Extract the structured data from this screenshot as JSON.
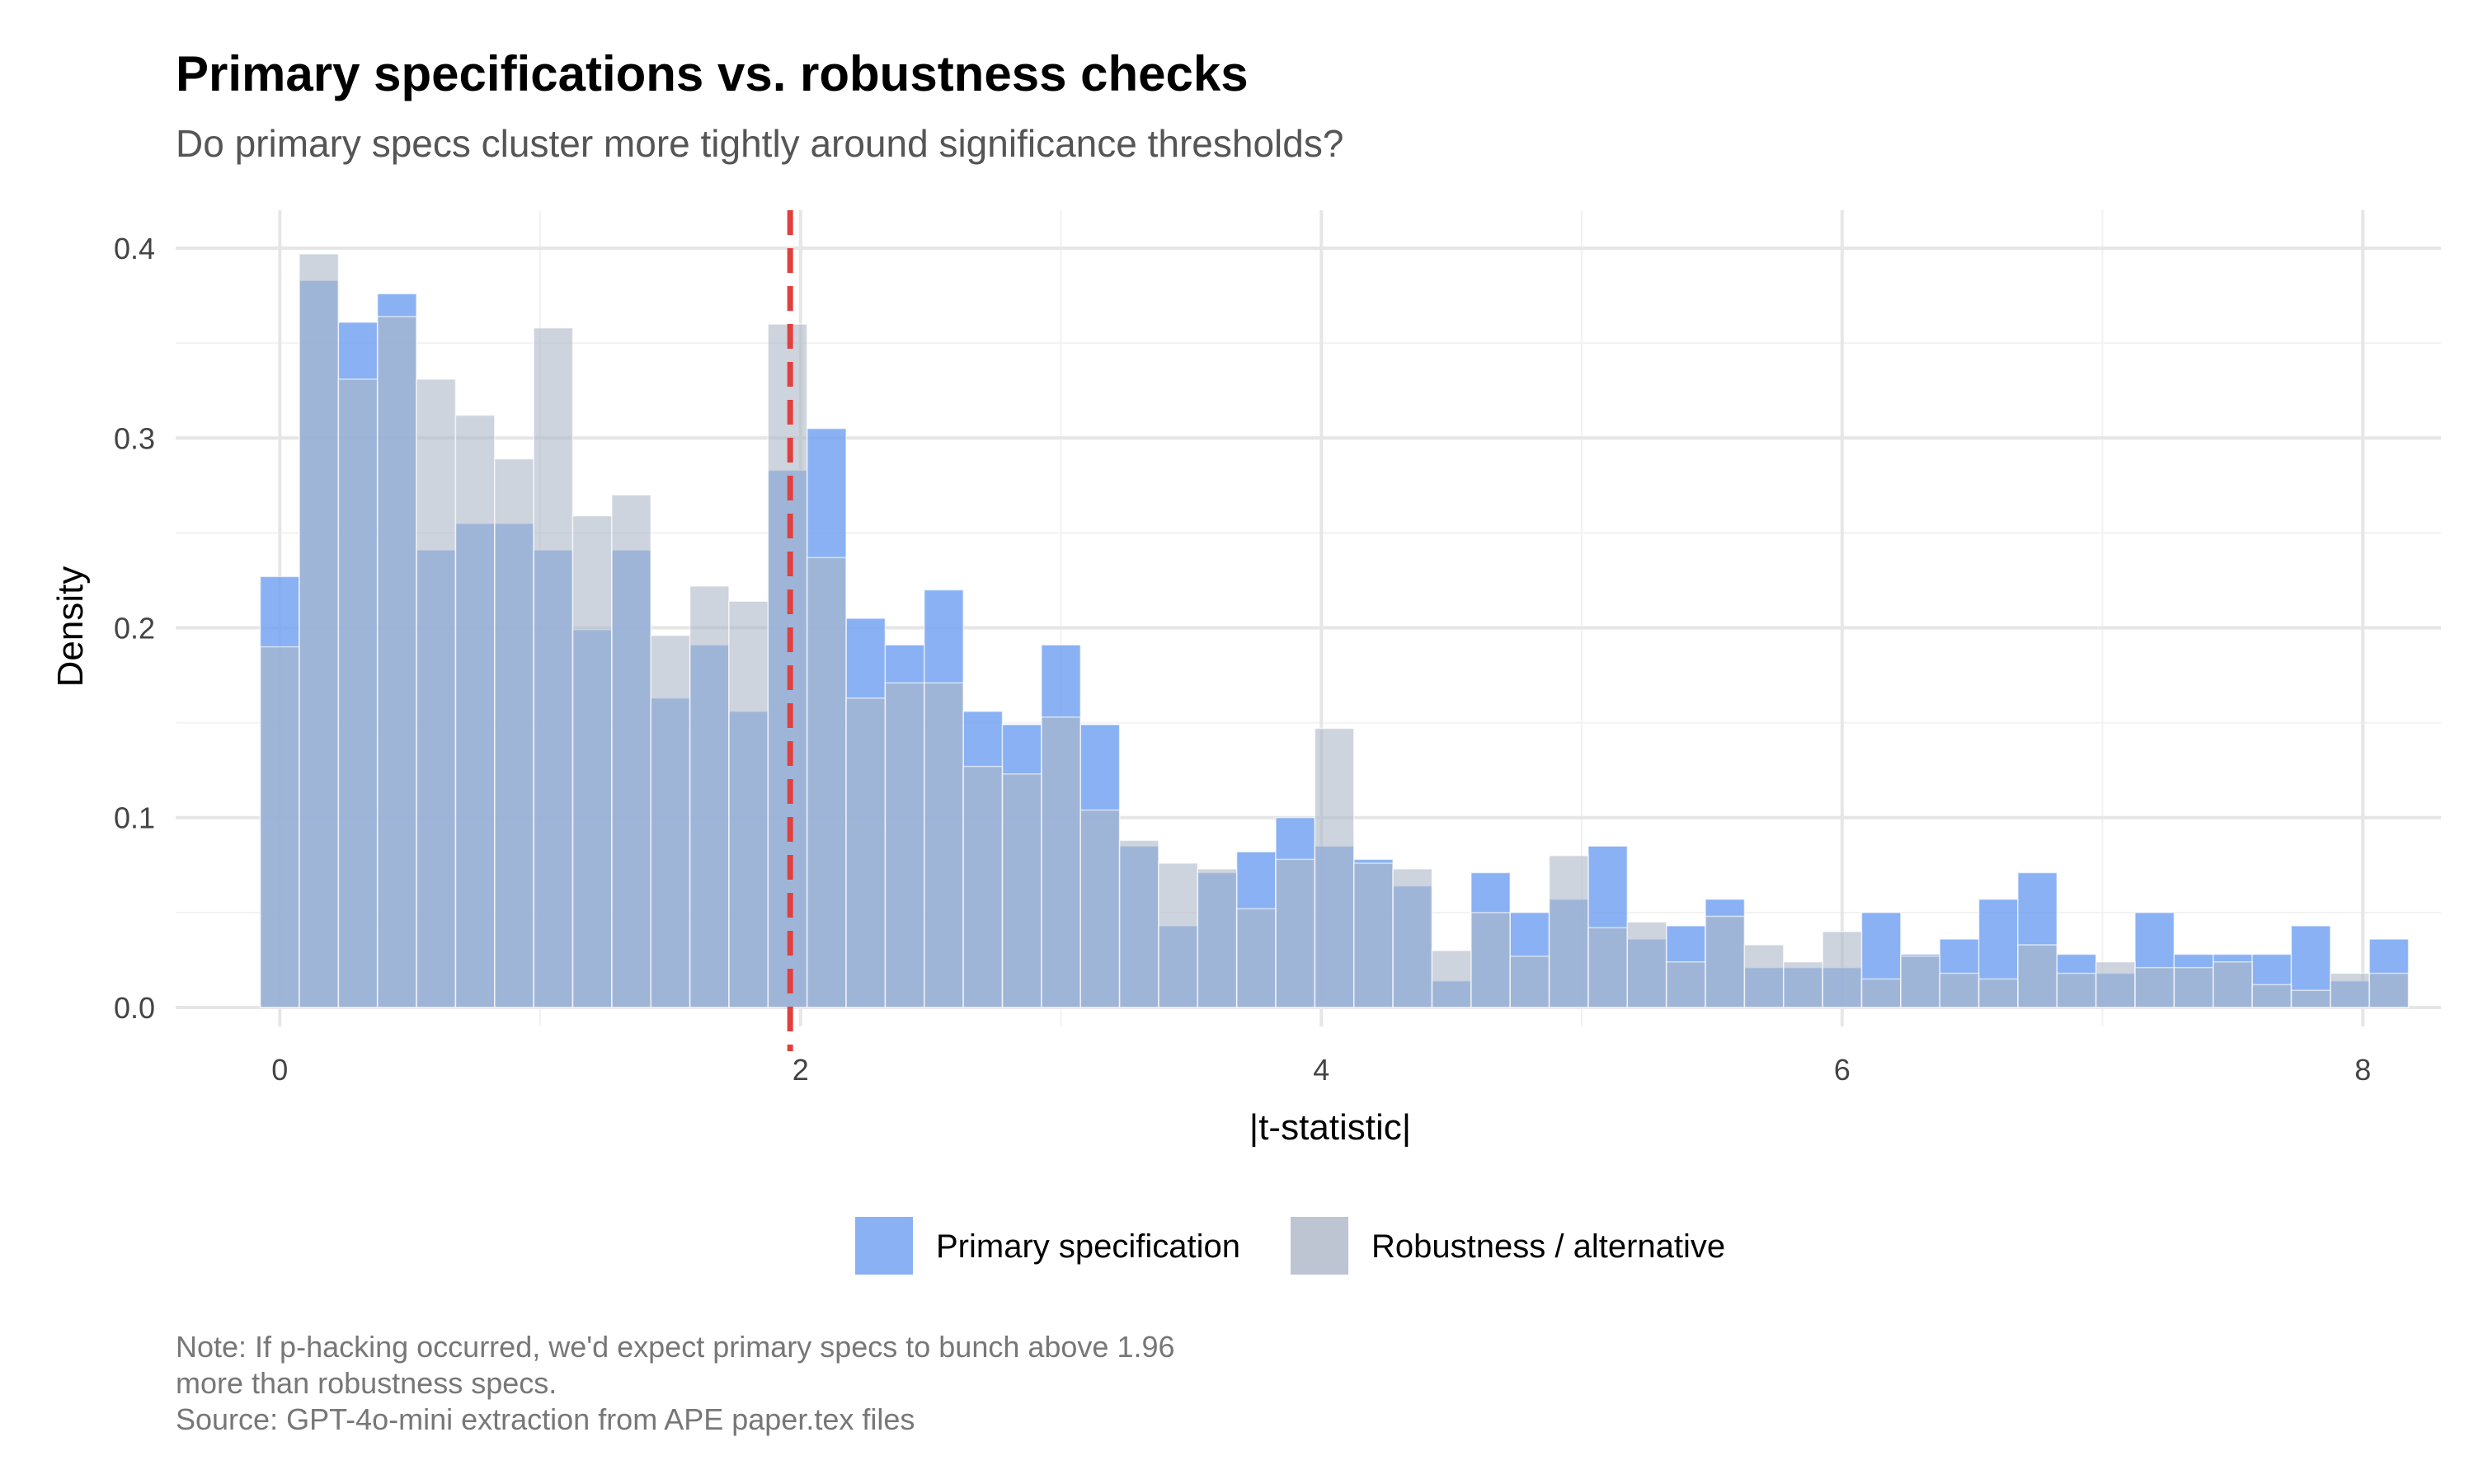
{
  "chart_data": {
    "type": "bar",
    "subtype": "overlaid-histogram",
    "title": "Primary specifications vs. robustness checks",
    "subtitle": "Do primary specs cluster more tightly around significance thresholds?",
    "xlabel": "|t-statistic|",
    "ylabel": "Density",
    "xlim": [
      -0.4,
      8.3
    ],
    "ylim": [
      -0.01,
      0.42
    ],
    "xticks": [
      0,
      2,
      4,
      6,
      8
    ],
    "xtick_labels": [
      "0",
      "2",
      "4",
      "6",
      "8"
    ],
    "yticks": [
      0.0,
      0.1,
      0.2,
      0.3,
      0.4
    ],
    "ytick_labels": [
      "0.0",
      "0.1",
      "0.2",
      "0.3",
      "0.4"
    ],
    "grid": true,
    "legend_position": "bottom",
    "bin_start": -0.075,
    "bin_width": 0.15,
    "reference_line": {
      "x": 1.96,
      "color": "#E04040",
      "style": "dashed"
    },
    "series": [
      {
        "name": "Primary specification",
        "color": "#6FA0F0",
        "values": [
          0.227,
          0.383,
          0.361,
          0.376,
          0.241,
          0.255,
          0.255,
          0.241,
          0.199,
          0.241,
          0.163,
          0.191,
          0.156,
          0.283,
          0.305,
          0.205,
          0.191,
          0.22,
          0.156,
          0.149,
          0.191,
          0.149,
          0.085,
          0.043,
          0.071,
          0.082,
          0.1,
          0.085,
          0.078,
          0.064,
          0.014,
          0.071,
          0.05,
          0.057,
          0.085,
          0.036,
          0.043,
          0.057,
          0.021,
          0.021,
          0.021,
          0.05,
          0.028,
          0.036,
          0.057,
          0.071,
          0.028,
          0.018,
          0.05,
          0.028,
          0.028,
          0.028,
          0.043,
          0.014,
          0.036
        ]
      },
      {
        "name": "Robustness / alternative",
        "color": "#AEB7C7",
        "values": [
          0.19,
          0.397,
          0.331,
          0.364,
          0.331,
          0.312,
          0.289,
          0.358,
          0.259,
          0.27,
          0.196,
          0.222,
          0.214,
          0.36,
          0.237,
          0.163,
          0.171,
          0.171,
          0.127,
          0.123,
          0.153,
          0.104,
          0.088,
          0.076,
          0.073,
          0.052,
          0.078,
          0.147,
          0.076,
          0.073,
          0.03,
          0.05,
          0.027,
          0.08,
          0.042,
          0.045,
          0.024,
          0.048,
          0.033,
          0.024,
          0.04,
          0.015,
          0.027,
          0.018,
          0.015,
          0.033,
          0.018,
          0.024,
          0.021,
          0.021,
          0.024,
          0.012,
          0.009,
          0.018,
          0.018
        ]
      }
    ],
    "caption_lines": [
      "Note: If p-hacking occurred, we'd expect primary specs to bunch above 1.96",
      "more than robustness specs.",
      "Source: GPT-4o-mini extraction from APE paper.tex files"
    ]
  }
}
